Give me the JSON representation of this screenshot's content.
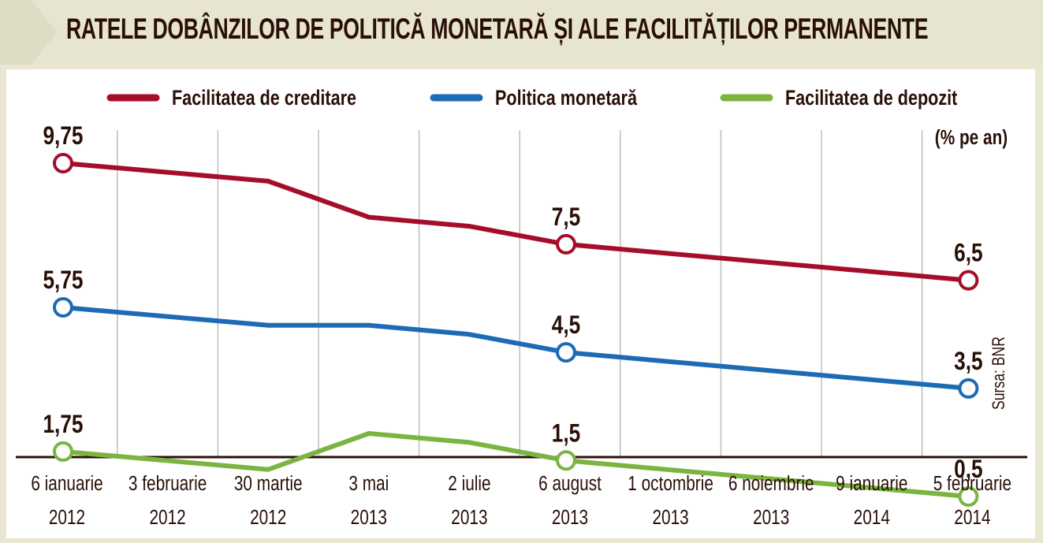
{
  "title": "RATELE DOBÂNZILOR DE POLITICĂ MONETARĂ ȘI ALE FACILITĂȚILOR PERMANENTE",
  "unit_label": "(% pe an)",
  "source": "Sursa: BNR",
  "colors": {
    "creditare": "#a50d2b",
    "politica": "#1d6bb4",
    "depozit": "#7cb442",
    "text": "#2a0f08",
    "background": "#e9e7d2"
  },
  "chart_data": {
    "type": "line",
    "categories": [
      [
        "6 ianuarie",
        "2012"
      ],
      [
        "3 februarie",
        "2012"
      ],
      [
        "30 martie",
        "2012"
      ],
      [
        "3 mai",
        "2013"
      ],
      [
        "2 iulie",
        "2013"
      ],
      [
        "6 august",
        "2013"
      ],
      [
        "1 octombrie",
        "2013"
      ],
      [
        "6 noiembrie",
        "2013"
      ],
      [
        "9 ianuarie",
        "2014"
      ],
      [
        "5 februarie",
        "2014"
      ]
    ],
    "x_dates": [
      "2012-01-06",
      "2012-02-03",
      "2012-03-30",
      "2013-05-03",
      "2013-07-02",
      "2013-08-06",
      "2013-10-01",
      "2013-11-06",
      "2014-01-09",
      "2014-02-05"
    ],
    "series": [
      {
        "name": "Facilitatea de creditare",
        "color": "#a50d2b",
        "points": [
          [
            0,
            9.75
          ],
          [
            2.04,
            9.25
          ],
          [
            3.04,
            8.25
          ],
          [
            4.04,
            8.0
          ],
          [
            5,
            7.5
          ],
          [
            9,
            6.5
          ]
        ],
        "labels": [
          [
            0,
            "9,75"
          ],
          [
            5,
            "7,5"
          ],
          [
            9,
            "6,5"
          ]
        ]
      },
      {
        "name": "Politica monetară",
        "color": "#1d6bb4",
        "points": [
          [
            0,
            5.75
          ],
          [
            2.04,
            5.25
          ],
          [
            3.04,
            5.25
          ],
          [
            4.04,
            5.0
          ],
          [
            5,
            4.5
          ],
          [
            9,
            3.5
          ]
        ],
        "labels": [
          [
            0,
            "5,75"
          ],
          [
            5,
            "4,5"
          ],
          [
            9,
            "3,5"
          ]
        ]
      },
      {
        "name": "Facilitatea de depozit",
        "color": "#7cb442",
        "points": [
          [
            0,
            1.75
          ],
          [
            2.04,
            1.25
          ],
          [
            3.04,
            2.25
          ],
          [
            4.04,
            2.0
          ],
          [
            5,
            1.5
          ],
          [
            9,
            0.5
          ]
        ],
        "labels": [
          [
            0,
            "1,75"
          ],
          [
            5,
            "1,5"
          ],
          [
            9,
            "0,5"
          ]
        ]
      }
    ],
    "grid": true,
    "legend": "top"
  }
}
